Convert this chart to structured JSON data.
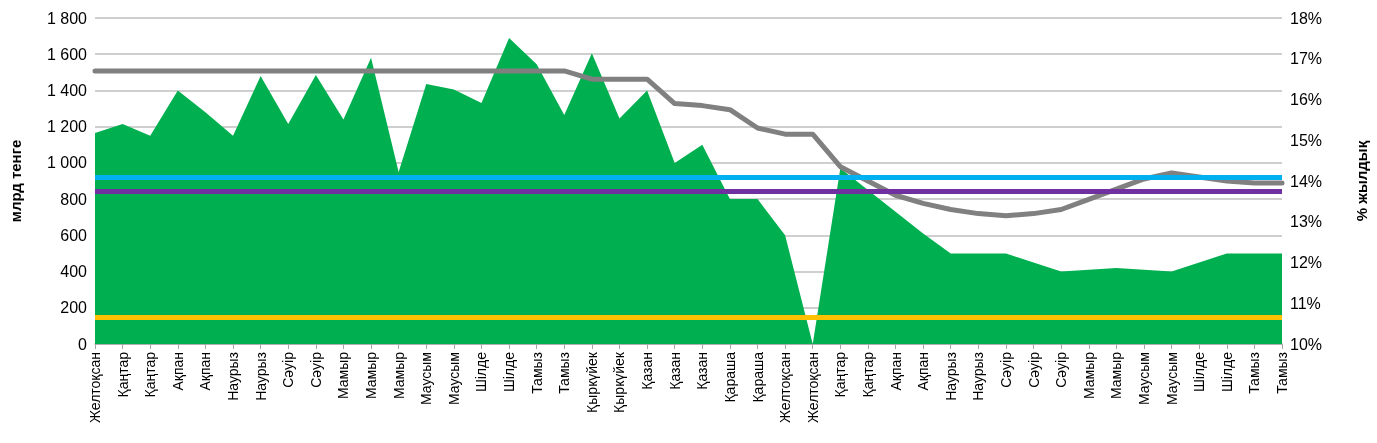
{
  "chart_data": {
    "type": "area",
    "ylabel": "млрд тенге",
    "y2label": "% жылдық",
    "categories": [
      "Желтоқсан",
      "Қаңтар",
      "Қаңтар",
      "Ақпан",
      "Ақпан",
      "Наурыз",
      "Наурыз",
      "Сәуір",
      "Сәуір",
      "Мамыр",
      "Мамыр",
      "Мамыр",
      "Маусым",
      "Маусым",
      "Шілде",
      "Шілде",
      "Тамыз",
      "Тамыз",
      "Қыркүйек",
      "Қыркүйек",
      "Қазан",
      "Қазан",
      "Қазан",
      "Қараша",
      "Қараша",
      "Желтоқсан",
      "Желтоқсан",
      "Қаңтар",
      "Қаңтар",
      "Ақпан",
      "Ақпан",
      "Наурыз",
      "Наурыз",
      "Сәуір",
      "Сәуір",
      "Сәуір",
      "Мамыр",
      "Мамыр",
      "Маусым",
      "Маусым",
      "Шілде",
      "Шілде",
      "Тамыз",
      "Тамыз"
    ],
    "series": [
      {
        "color": "#00b050",
        "values": [
          1165,
          1215,
          1150,
          1400,
          1280,
          1150,
          1480,
          1215,
          1485,
          1240,
          1580,
          950,
          1435,
          1405,
          1330,
          1690,
          1545,
          1265,
          1605,
          1245,
          1400,
          1000,
          1100,
          800,
          800,
          600,
          0,
          970,
          850,
          730,
          610,
          500,
          500,
          500,
          450,
          400,
          410,
          420,
          410,
          400,
          450,
          500,
          500,
          500
        ]
      },
      {
        "type": "line",
        "axis": "y2",
        "color": "#808080",
        "values": [
          16.7,
          16.7,
          16.7,
          16.7,
          16.7,
          16.7,
          16.7,
          16.7,
          16.7,
          16.7,
          16.7,
          16.7,
          16.7,
          16.7,
          16.7,
          16.7,
          16.7,
          16.7,
          16.5,
          16.5,
          16.5,
          15.9,
          15.85,
          15.75,
          15.3,
          15.15,
          15.15,
          14.35,
          14.0,
          13.65,
          13.45,
          13.3,
          13.2,
          13.15,
          13.2,
          13.3,
          13.55,
          13.8,
          14.05,
          14.2,
          14.1,
          14.0,
          13.95,
          13.95
        ]
      }
    ],
    "ylim": [
      0,
      1800
    ],
    "yticks": [
      0,
      200,
      400,
      600,
      800,
      {
        "value": 1000,
        "label": "1 000"
      },
      {
        "value": 1200,
        "label": "1 200"
      },
      {
        "value": 1400,
        "label": "1 400"
      },
      {
        "value": 1600,
        "label": "1 600"
      },
      {
        "value": 1800,
        "label": "1 800"
      }
    ],
    "y2lim": [
      10,
      18
    ],
    "y2ticks": [
      {
        "value": 10,
        "label": "10%"
      },
      {
        "value": 11,
        "label": "11%"
      },
      {
        "value": 12,
        "label": "12%"
      },
      {
        "value": 13,
        "label": "13%"
      },
      {
        "value": 14,
        "label": "14%"
      },
      {
        "value": 15,
        "label": "15%"
      },
      {
        "value": 16,
        "label": "16%"
      },
      {
        "value": 17,
        "label": "17%"
      },
      {
        "value": 18,
        "label": "18%"
      }
    ],
    "ref_lines": [
      {
        "axis": "y",
        "value": 920,
        "color": "#00b0f0"
      },
      {
        "axis": "y",
        "value": 845,
        "color": "#7030a0"
      },
      {
        "axis": "y",
        "value": 150,
        "color": "#ffc000"
      }
    ],
    "grid": "y",
    "marker": "none",
    "line_style": "solid"
  }
}
